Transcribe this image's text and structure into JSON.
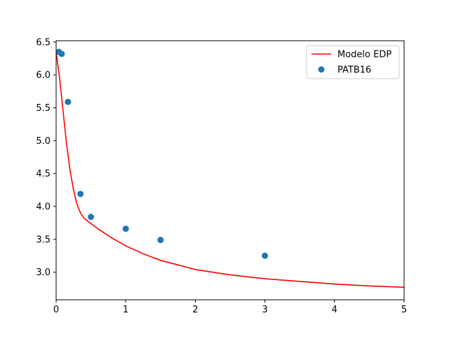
{
  "chart_data": {
    "type": "line",
    "title": "",
    "xlabel": "",
    "ylabel": "",
    "xlim": [
      0,
      5
    ],
    "ylim": [
      2.58,
      6.52
    ],
    "xticks": [
      "0",
      "1",
      "2",
      "3",
      "4",
      "5"
    ],
    "yticks": [
      "3.0",
      "3.5",
      "4.0",
      "4.5",
      "5.0",
      "5.5",
      "6.0",
      "6.5"
    ],
    "grid": false,
    "legend_position": "top-right",
    "series": [
      {
        "name": "Modelo EDP",
        "kind": "line",
        "color": "#ff0000",
        "x": [
          0,
          0.05,
          0.1,
          0.15,
          0.2,
          0.25,
          0.3,
          0.35,
          0.4,
          0.5,
          0.6,
          0.8,
          1.0,
          1.25,
          1.5,
          2.0,
          2.5,
          3.0,
          3.5,
          4.0,
          4.5,
          5.0
        ],
        "y": [
          6.35,
          5.95,
          5.45,
          4.95,
          4.55,
          4.25,
          4.03,
          3.9,
          3.82,
          3.74,
          3.66,
          3.52,
          3.4,
          3.28,
          3.18,
          3.04,
          2.96,
          2.9,
          2.86,
          2.82,
          2.79,
          2.77
        ]
      },
      {
        "name": "PATB16",
        "kind": "scatter",
        "color": "#1f77b4",
        "x": [
          0.04,
          0.08,
          0.17,
          0.35,
          0.5,
          1.0,
          1.5,
          3.0
        ],
        "y": [
          6.35,
          6.32,
          5.59,
          4.19,
          3.84,
          3.66,
          3.49,
          3.25
        ]
      }
    ]
  }
}
